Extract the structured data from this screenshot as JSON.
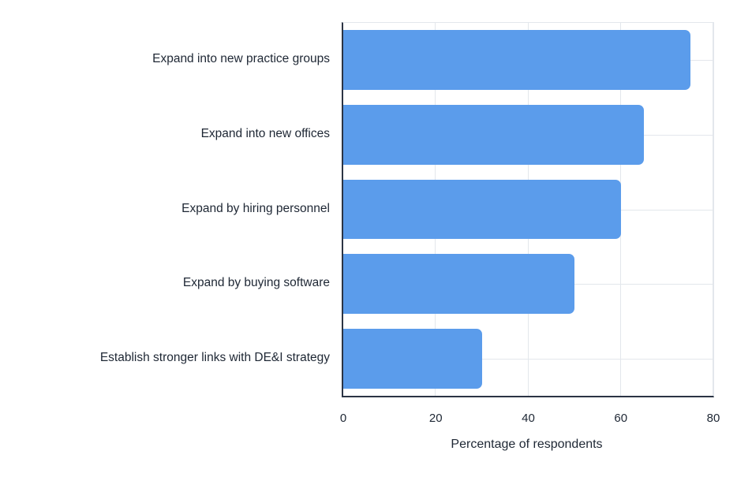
{
  "chart_data": {
    "type": "bar",
    "orientation": "horizontal",
    "title": "",
    "xlabel": "Percentage of respondents",
    "ylabel": "",
    "categories": [
      "Expand into new practice groups",
      "Expand into new offices",
      "Expand by hiring personnel",
      "Expand by buying software",
      "Establish stronger links with DE&I strategy"
    ],
    "values": [
      75,
      65,
      60,
      50,
      30
    ],
    "xlim": [
      0,
      80
    ],
    "xticks": [
      0,
      20,
      40,
      60,
      80
    ],
    "grid": true,
    "legend_position": "none",
    "colors": {
      "bar": "#5B9CEB",
      "grid": "#E3E7EC",
      "axis": "#2B3444",
      "text": "#1E2734"
    }
  }
}
